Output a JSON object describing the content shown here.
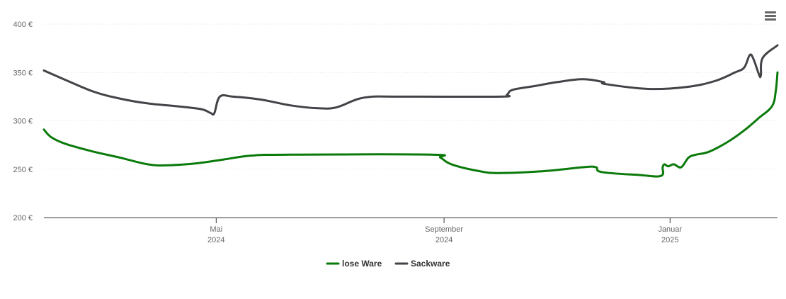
{
  "menu": {
    "icon": "hamburger-menu-icon"
  },
  "chart_data": {
    "type": "line",
    "title": "",
    "xlabel": "",
    "ylabel": "",
    "ylim": [
      200,
      400
    ],
    "y_ticks": [
      {
        "value": 200,
        "label": "200 €"
      },
      {
        "value": 250,
        "label": "250 €"
      },
      {
        "value": 300,
        "label": "300 €"
      },
      {
        "value": 350,
        "label": "350 €"
      },
      {
        "value": 400,
        "label": "400 €"
      }
    ],
    "x_range": [
      "2024-01-29",
      "2025-02-28"
    ],
    "x_ticks": [
      {
        "date": "2024-05-01",
        "line1": "Mai",
        "line2": "2024"
      },
      {
        "date": "2024-09-01",
        "line1": "September",
        "line2": "2024"
      },
      {
        "date": "2025-01-01",
        "line1": "Januar",
        "line2": "2025"
      }
    ],
    "grid": true,
    "legend_position": "bottom-center",
    "series": [
      {
        "name": "lose Ware",
        "color": "#0a7a0a",
        "points": [
          [
            "2024-01-29",
            291
          ],
          [
            "2024-02-02",
            283
          ],
          [
            "2024-02-10",
            276
          ],
          [
            "2024-02-25",
            268
          ],
          [
            "2024-03-10",
            262
          ],
          [
            "2024-03-25",
            255
          ],
          [
            "2024-04-05",
            254
          ],
          [
            "2024-04-20",
            256
          ],
          [
            "2024-05-05",
            260
          ],
          [
            "2024-05-20",
            264
          ],
          [
            "2024-06-10",
            265
          ],
          [
            "2024-08-25",
            265
          ],
          [
            "2024-08-30",
            262
          ],
          [
            "2024-09-05",
            255
          ],
          [
            "2024-09-20",
            248
          ],
          [
            "2024-10-01",
            246
          ],
          [
            "2024-10-25",
            248
          ],
          [
            "2024-11-15",
            252
          ],
          [
            "2024-11-22",
            252
          ],
          [
            "2024-11-25",
            247
          ],
          [
            "2024-12-15",
            244
          ],
          [
            "2024-12-27",
            243
          ],
          [
            "2024-12-28",
            252
          ],
          [
            "2024-12-29",
            255
          ],
          [
            "2024-12-31",
            253
          ],
          [
            "2025-01-03",
            255
          ],
          [
            "2025-01-07",
            252
          ],
          [
            "2025-01-11",
            262
          ],
          [
            "2025-01-15",
            265
          ],
          [
            "2025-01-22",
            268
          ],
          [
            "2025-02-01",
            278
          ],
          [
            "2025-02-10",
            290
          ],
          [
            "2025-02-18",
            303
          ],
          [
            "2025-02-25",
            315
          ],
          [
            "2025-02-27",
            330
          ],
          [
            "2025-02-28",
            350
          ]
        ]
      },
      {
        "name": "Sackware",
        "color": "#434348",
        "points": [
          [
            "2024-01-29",
            352
          ],
          [
            "2024-02-10",
            342
          ],
          [
            "2024-02-25",
            330
          ],
          [
            "2024-03-10",
            323
          ],
          [
            "2024-03-25",
            318
          ],
          [
            "2024-04-10",
            315
          ],
          [
            "2024-04-23",
            312
          ],
          [
            "2024-04-28",
            308
          ],
          [
            "2024-04-30",
            308
          ],
          [
            "2024-05-03",
            325
          ],
          [
            "2024-05-10",
            325
          ],
          [
            "2024-05-25",
            322
          ],
          [
            "2024-06-10",
            316
          ],
          [
            "2024-06-25",
            313
          ],
          [
            "2024-07-05",
            314
          ],
          [
            "2024-07-20",
            324
          ],
          [
            "2024-08-10",
            325
          ],
          [
            "2024-10-01",
            325
          ],
          [
            "2024-10-05",
            327
          ],
          [
            "2024-10-08",
            332
          ],
          [
            "2024-10-20",
            336
          ],
          [
            "2024-11-01",
            340
          ],
          [
            "2024-11-15",
            343
          ],
          [
            "2024-11-26",
            340
          ],
          [
            "2024-11-27",
            338
          ],
          [
            "2024-12-20",
            333
          ],
          [
            "2025-01-10",
            335
          ],
          [
            "2025-01-25",
            341
          ],
          [
            "2025-02-05",
            350
          ],
          [
            "2025-02-10",
            355
          ],
          [
            "2025-02-13",
            368
          ],
          [
            "2025-02-15",
            364
          ],
          [
            "2025-02-18",
            348
          ],
          [
            "2025-02-19",
            347
          ],
          [
            "2025-02-20",
            365
          ],
          [
            "2025-02-28",
            378
          ]
        ]
      }
    ]
  }
}
